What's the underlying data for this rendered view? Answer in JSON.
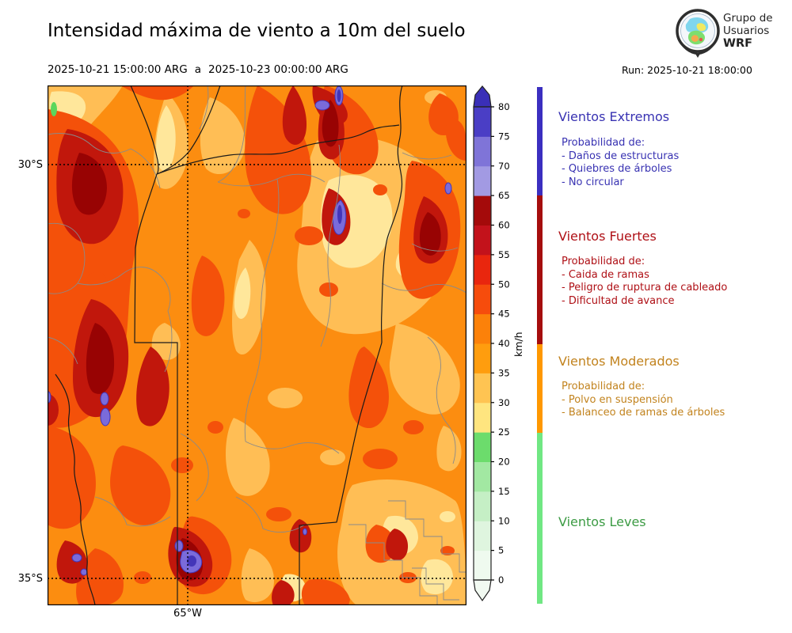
{
  "header": {
    "title": "Intensidad máxima de viento a 10m del suelo",
    "period_start": "2025-10-21 15:00:00 ARG",
    "period_sep": "a",
    "period_end": "2025-10-23 00:00:00 ARG",
    "run_label": "Run: 2025-10-21 18:00:00",
    "logo_lines": [
      "Grupo de",
      "Usuarios",
      "WRF"
    ]
  },
  "map_axes": {
    "lat_ticks": [
      "30°S",
      "35°S"
    ],
    "lon_ticks": [
      "65°W"
    ]
  },
  "colorbar": {
    "unit": "km/h",
    "ticks": [
      0,
      5,
      10,
      15,
      20,
      25,
      30,
      35,
      40,
      45,
      50,
      55,
      60,
      65,
      70,
      75,
      80
    ],
    "colors_bottom_to_top": [
      "#EFFAEF",
      "#DFF5DF",
      "#C5EFC5",
      "#A2E8A2",
      "#6CDC6C",
      "#FFE57F",
      "#FFC452",
      "#FF9D0E",
      "#FC8109",
      "#F64C0C",
      "#E9260E",
      "#C3121B",
      "#A40A0A",
      "#A29AE3",
      "#7F74D8",
      "#4A3EC5"
    ],
    "over_color": "#3A2FB8",
    "under_color": "#F2FAF2"
  },
  "legend": {
    "sections": [
      {
        "title": "Vientos Extremos",
        "color": "#3832B2",
        "bar_color": "#3B2FC0",
        "prob_label": "Probabilidad de:",
        "items": [
          "- Daños de estructuras",
          "- Quiebres de árboles",
          "- No circular"
        ]
      },
      {
        "title": "Vientos Fuertes",
        "color": "#AF1016",
        "bar_color": "#A50D0D",
        "prob_label": "Probabilidad de:",
        "items": [
          "- Caida de ramas",
          "- Peligro de ruptura de cableado",
          "- Dificultad de avance"
        ]
      },
      {
        "title": "Vientos Moderados",
        "color": "#C2831E",
        "bar_color": "#FF9800",
        "prob_label": "Probabilidad de:",
        "items": [
          "- Polvo en suspensión",
          "- Balanceo de ramas de árboles"
        ]
      },
      {
        "title": "Vientos Leves",
        "color": "#3C9B44",
        "bar_color": "#70E783",
        "prob_label": "",
        "items": []
      }
    ]
  },
  "map_colors": {
    "base_40_45": "#FC8D10",
    "red_45_50": "#F4510A",
    "dark_red_55_65": "#C1170C",
    "darkest_red": "#980303",
    "light_orange_30_35": "#FFBE55",
    "cream_25_30": "#FFE79B",
    "extreme_purple": "#7A6BDA",
    "extreme_purple_core": "#4335B8",
    "green_20_25": "#5CD65C"
  }
}
